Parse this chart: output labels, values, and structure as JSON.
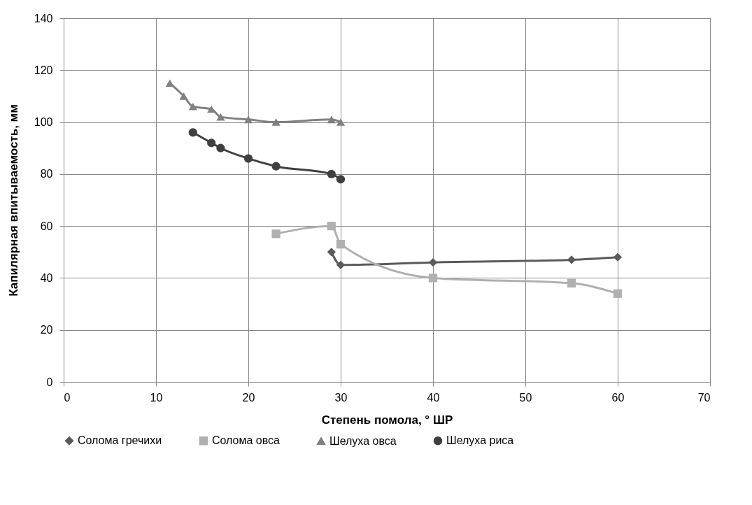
{
  "chart_data": {
    "type": "line",
    "xlabel": "Степень помола, ° ШР",
    "ylabel": "Капилярная впитываемость, мм",
    "xlim": [
      0,
      70
    ],
    "xticks": [
      0,
      10,
      20,
      30,
      40,
      50,
      60,
      70
    ],
    "ylim": [
      0,
      140
    ],
    "yticks": [
      0,
      20,
      40,
      60,
      80,
      100,
      120,
      140
    ],
    "grid": true,
    "legend": "bottom",
    "line_style": "solid",
    "series": [
      {
        "name": "Солома гречихи",
        "color": "#5a5a5a",
        "marker": "diamond",
        "x": [
          29,
          30,
          40,
          55,
          60
        ],
        "values": [
          50,
          45,
          46,
          47,
          48
        ]
      },
      {
        "name": "Солома овса",
        "color": "#b0b0b0",
        "marker": "square",
        "x": [
          23,
          29,
          30,
          40,
          55,
          60
        ],
        "values": [
          57,
          60,
          53,
          40,
          38,
          34
        ]
      },
      {
        "name": "Шелуха овса",
        "color": "#808080",
        "marker": "triangle",
        "x": [
          11.5,
          13,
          14,
          16,
          17,
          20,
          23,
          29,
          30
        ],
        "values": [
          115,
          110,
          106,
          105,
          102,
          101,
          100,
          101,
          100
        ]
      },
      {
        "name": "Шелуха риса",
        "color": "#404040",
        "marker": "circle",
        "x": [
          14,
          16,
          17,
          20,
          23,
          29,
          30
        ],
        "values": [
          96,
          92,
          90,
          86,
          83,
          80,
          78
        ]
      }
    ]
  }
}
